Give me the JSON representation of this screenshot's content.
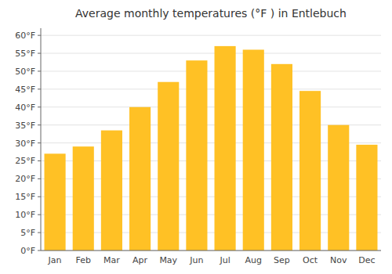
{
  "chart_data": {
    "type": "bar",
    "title": "Average monthly temperatures (°F ) in Entlebuch",
    "categories": [
      "Jan",
      "Feb",
      "Mar",
      "Apr",
      "May",
      "Jun",
      "Jul",
      "Aug",
      "Sep",
      "Oct",
      "Nov",
      "Dec"
    ],
    "values": [
      27,
      29,
      33.5,
      40,
      47,
      53,
      57,
      56,
      52,
      44.5,
      35,
      29.5
    ],
    "color": "#FFC125",
    "ylim": [
      0,
      62
    ],
    "yticks": [
      {
        "value": 0,
        "label": "0°F"
      },
      {
        "value": 5,
        "label": "5°F"
      },
      {
        "value": 10,
        "label": "10°F"
      },
      {
        "value": 15,
        "label": "15°F"
      },
      {
        "value": 20,
        "label": "20°F"
      },
      {
        "value": 25,
        "label": "25°F"
      },
      {
        "value": 30,
        "label": "30°F"
      },
      {
        "value": 35,
        "label": "35°F"
      },
      {
        "value": 40,
        "label": "40°F"
      },
      {
        "value": 45,
        "label": "45°F"
      },
      {
        "value": 50,
        "label": "50°F"
      },
      {
        "value": 55,
        "label": "55°F"
      },
      {
        "value": 60,
        "label": "60°F"
      }
    ],
    "grid": true
  }
}
